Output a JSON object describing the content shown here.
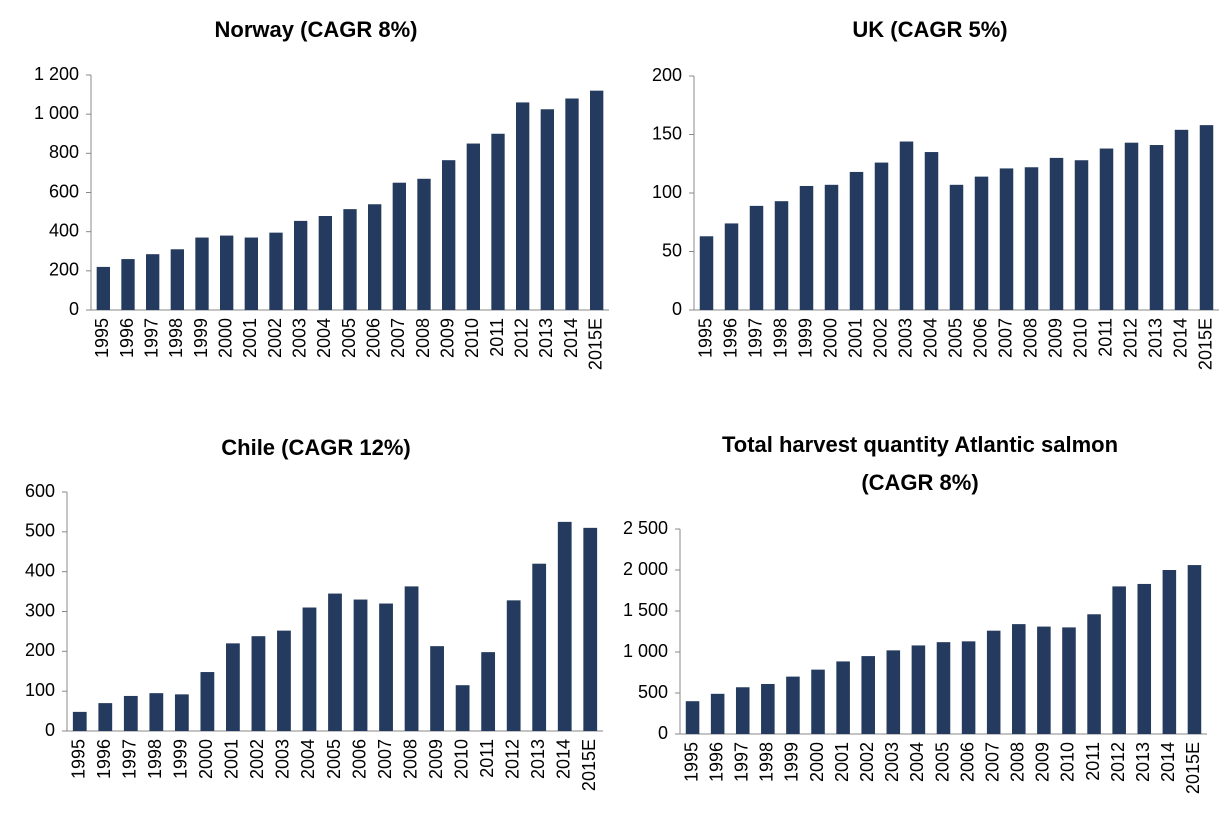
{
  "chart_data": [
    {
      "type": "bar",
      "title": "Norway (CAGR 8%)",
      "color": "#243a5e",
      "categories": [
        "1995",
        "1996",
        "1997",
        "1998",
        "1999",
        "2000",
        "2001",
        "2002",
        "2003",
        "2004",
        "2005",
        "2006",
        "2007",
        "2008",
        "2009",
        "2010",
        "2011",
        "2012",
        "2013",
        "2014",
        "2015E"
      ],
      "values": [
        220,
        260,
        285,
        310,
        370,
        380,
        370,
        395,
        455,
        480,
        515,
        540,
        650,
        670,
        765,
        850,
        900,
        1060,
        1025,
        1080,
        1120
      ],
      "ylim": [
        0,
        1200
      ],
      "yticks": [
        0,
        200,
        400,
        600,
        800,
        {
          "value": 1000,
          "label": "1 000"
        },
        {
          "value": 1200,
          "label": "1 200"
        }
      ]
    },
    {
      "type": "bar",
      "title": "UK (CAGR 5%)",
      "color": "#243a5e",
      "categories": [
        "1995",
        "1996",
        "1997",
        "1998",
        "1999",
        "2000",
        "2001",
        "2002",
        "2003",
        "2004",
        "2005",
        "2006",
        "2007",
        "2008",
        "2009",
        "2010",
        "2011",
        "2012",
        "2013",
        "2014",
        "2015E"
      ],
      "values": [
        63,
        74,
        89,
        93,
        106,
        107,
        118,
        126,
        144,
        135,
        107,
        114,
        121,
        122,
        130,
        128,
        138,
        143,
        141,
        154,
        158
      ],
      "ylim": [
        0,
        200
      ],
      "yticks": [
        0,
        50,
        100,
        150,
        200
      ]
    },
    {
      "type": "bar",
      "title": "Chile (CAGR 12%)",
      "color": "#243a5e",
      "categories": [
        "1995",
        "1996",
        "1997",
        "1998",
        "1999",
        "2000",
        "2001",
        "2002",
        "2003",
        "2004",
        "2005",
        "2006",
        "2007",
        "2008",
        "2009",
        "2010",
        "2011",
        "2012",
        "2013",
        "2014",
        "2015E"
      ],
      "values": [
        48,
        70,
        88,
        95,
        92,
        148,
        220,
        238,
        252,
        310,
        345,
        330,
        320,
        363,
        213,
        115,
        198,
        328,
        420,
        525,
        510
      ],
      "ylim": [
        0,
        600
      ],
      "yticks": [
        0,
        100,
        200,
        300,
        400,
        500,
        600
      ]
    },
    {
      "type": "bar",
      "title": "Total harvest quantity Atlantic salmon (CAGR 8%)",
      "color": "#243a5e",
      "categories": [
        "1995",
        "1996",
        "1997",
        "1998",
        "1999",
        "2000",
        "2001",
        "2002",
        "2003",
        "2004",
        "2005",
        "2006",
        "2007",
        "2008",
        "2009",
        "2010",
        "2011",
        "2012",
        "2013",
        "2014",
        "2015E"
      ],
      "values": [
        400,
        490,
        570,
        610,
        700,
        785,
        885,
        950,
        1020,
        1080,
        1120,
        1130,
        1260,
        1340,
        1310,
        1300,
        1460,
        1800,
        1830,
        2000,
        2060
      ],
      "ylim": [
        0,
        2500
      ],
      "yticks": [
        0,
        500,
        {
          "value": 1000,
          "label": "1 000"
        },
        {
          "value": 1500,
          "label": "1 500"
        },
        {
          "value": 2000,
          "label": "2 000"
        },
        {
          "value": 2500,
          "label": "2 500"
        }
      ]
    }
  ]
}
